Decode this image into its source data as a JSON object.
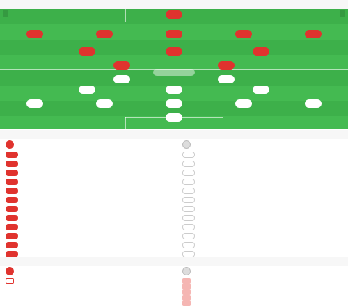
{
  "lineup": {
    "title": "",
    "subtitle": "",
    "home_team": "",
    "away_team": "",
    "mid_label": "",
    "home_formation": "",
    "away_formation": "",
    "home_players": [
      {
        "number": "",
        "name": ""
      },
      {
        "number": "",
        "name": ""
      },
      {
        "number": "",
        "name": ""
      },
      {
        "number": "",
        "name": ""
      },
      {
        "number": "",
        "name": ""
      },
      {
        "number": "",
        "name": ""
      },
      {
        "number": "",
        "name": ""
      },
      {
        "number": "",
        "name": ""
      },
      {
        "number": "",
        "name": ""
      },
      {
        "number": "",
        "name": ""
      },
      {
        "number": "",
        "name": ""
      }
    ],
    "away_players": [
      {
        "number": "",
        "name": ""
      },
      {
        "number": "",
        "name": ""
      },
      {
        "number": "",
        "name": ""
      },
      {
        "number": "",
        "name": ""
      },
      {
        "number": "",
        "name": ""
      },
      {
        "number": "",
        "name": ""
      },
      {
        "number": "",
        "name": ""
      },
      {
        "number": "",
        "name": ""
      },
      {
        "number": "",
        "name": ""
      },
      {
        "number": "",
        "name": ""
      },
      {
        "number": "",
        "name": ""
      }
    ]
  },
  "subs": {
    "title": "",
    "home_coach": "",
    "away_coach": "",
    "home": [
      {
        "number": "",
        "name": "",
        "meta": "",
        "event": ""
      },
      {
        "number": "",
        "name": "",
        "meta": "",
        "event": ""
      },
      {
        "number": "",
        "name": "",
        "meta": "",
        "event": ""
      },
      {
        "number": "",
        "name": "",
        "meta": "",
        "event": ""
      },
      {
        "number": "",
        "name": "",
        "meta": "",
        "event": ""
      },
      {
        "number": "",
        "name": "",
        "meta": "",
        "event": ""
      },
      {
        "number": "",
        "name": "",
        "meta": "",
        "event": ""
      },
      {
        "number": "",
        "name": "",
        "meta": "",
        "event": ""
      },
      {
        "number": "",
        "name": "",
        "meta": "",
        "event": ""
      },
      {
        "number": "",
        "name": "",
        "meta": "",
        "event": ""
      },
      {
        "number": "",
        "name": "",
        "meta": "",
        "event": ""
      },
      {
        "number": "",
        "name": "",
        "meta": "",
        "event": ""
      }
    ],
    "away": [
      {
        "number": "",
        "name": "",
        "meta": "",
        "event": ""
      },
      {
        "number": "",
        "name": "",
        "meta": "",
        "event": ""
      },
      {
        "number": "",
        "name": "",
        "meta": "",
        "event": ""
      },
      {
        "number": "",
        "name": "",
        "meta": "",
        "event": ""
      },
      {
        "number": "",
        "name": "",
        "meta": "",
        "event": ""
      },
      {
        "number": "",
        "name": "",
        "meta": "",
        "event": ""
      },
      {
        "number": "",
        "name": "",
        "meta": "",
        "event": ""
      },
      {
        "number": "",
        "name": "",
        "meta": "",
        "event": ""
      },
      {
        "number": "",
        "name": "",
        "meta": "",
        "event": ""
      },
      {
        "number": "",
        "name": "",
        "meta": "",
        "event": ""
      },
      {
        "number": "",
        "name": "",
        "meta": "",
        "event": ""
      },
      {
        "number": "",
        "name": "",
        "meta": "",
        "event": ""
      }
    ]
  },
  "injuries": {
    "title": "",
    "home_coach": "",
    "away_coach": "",
    "home": [
      {
        "name": "",
        "reason": ""
      }
    ],
    "away": [
      {
        "name": "",
        "reason": ""
      },
      {
        "name": "",
        "reason": ""
      },
      {
        "name": "",
        "reason": ""
      },
      {
        "name": "",
        "reason": ""
      },
      {
        "name": "",
        "reason": ""
      }
    ]
  },
  "colors": {
    "home": "#e0332e",
    "pitch": "#3db04a"
  },
  "icons": {
    "home_coach": "person-icon",
    "away_coach": "person-icon"
  }
}
